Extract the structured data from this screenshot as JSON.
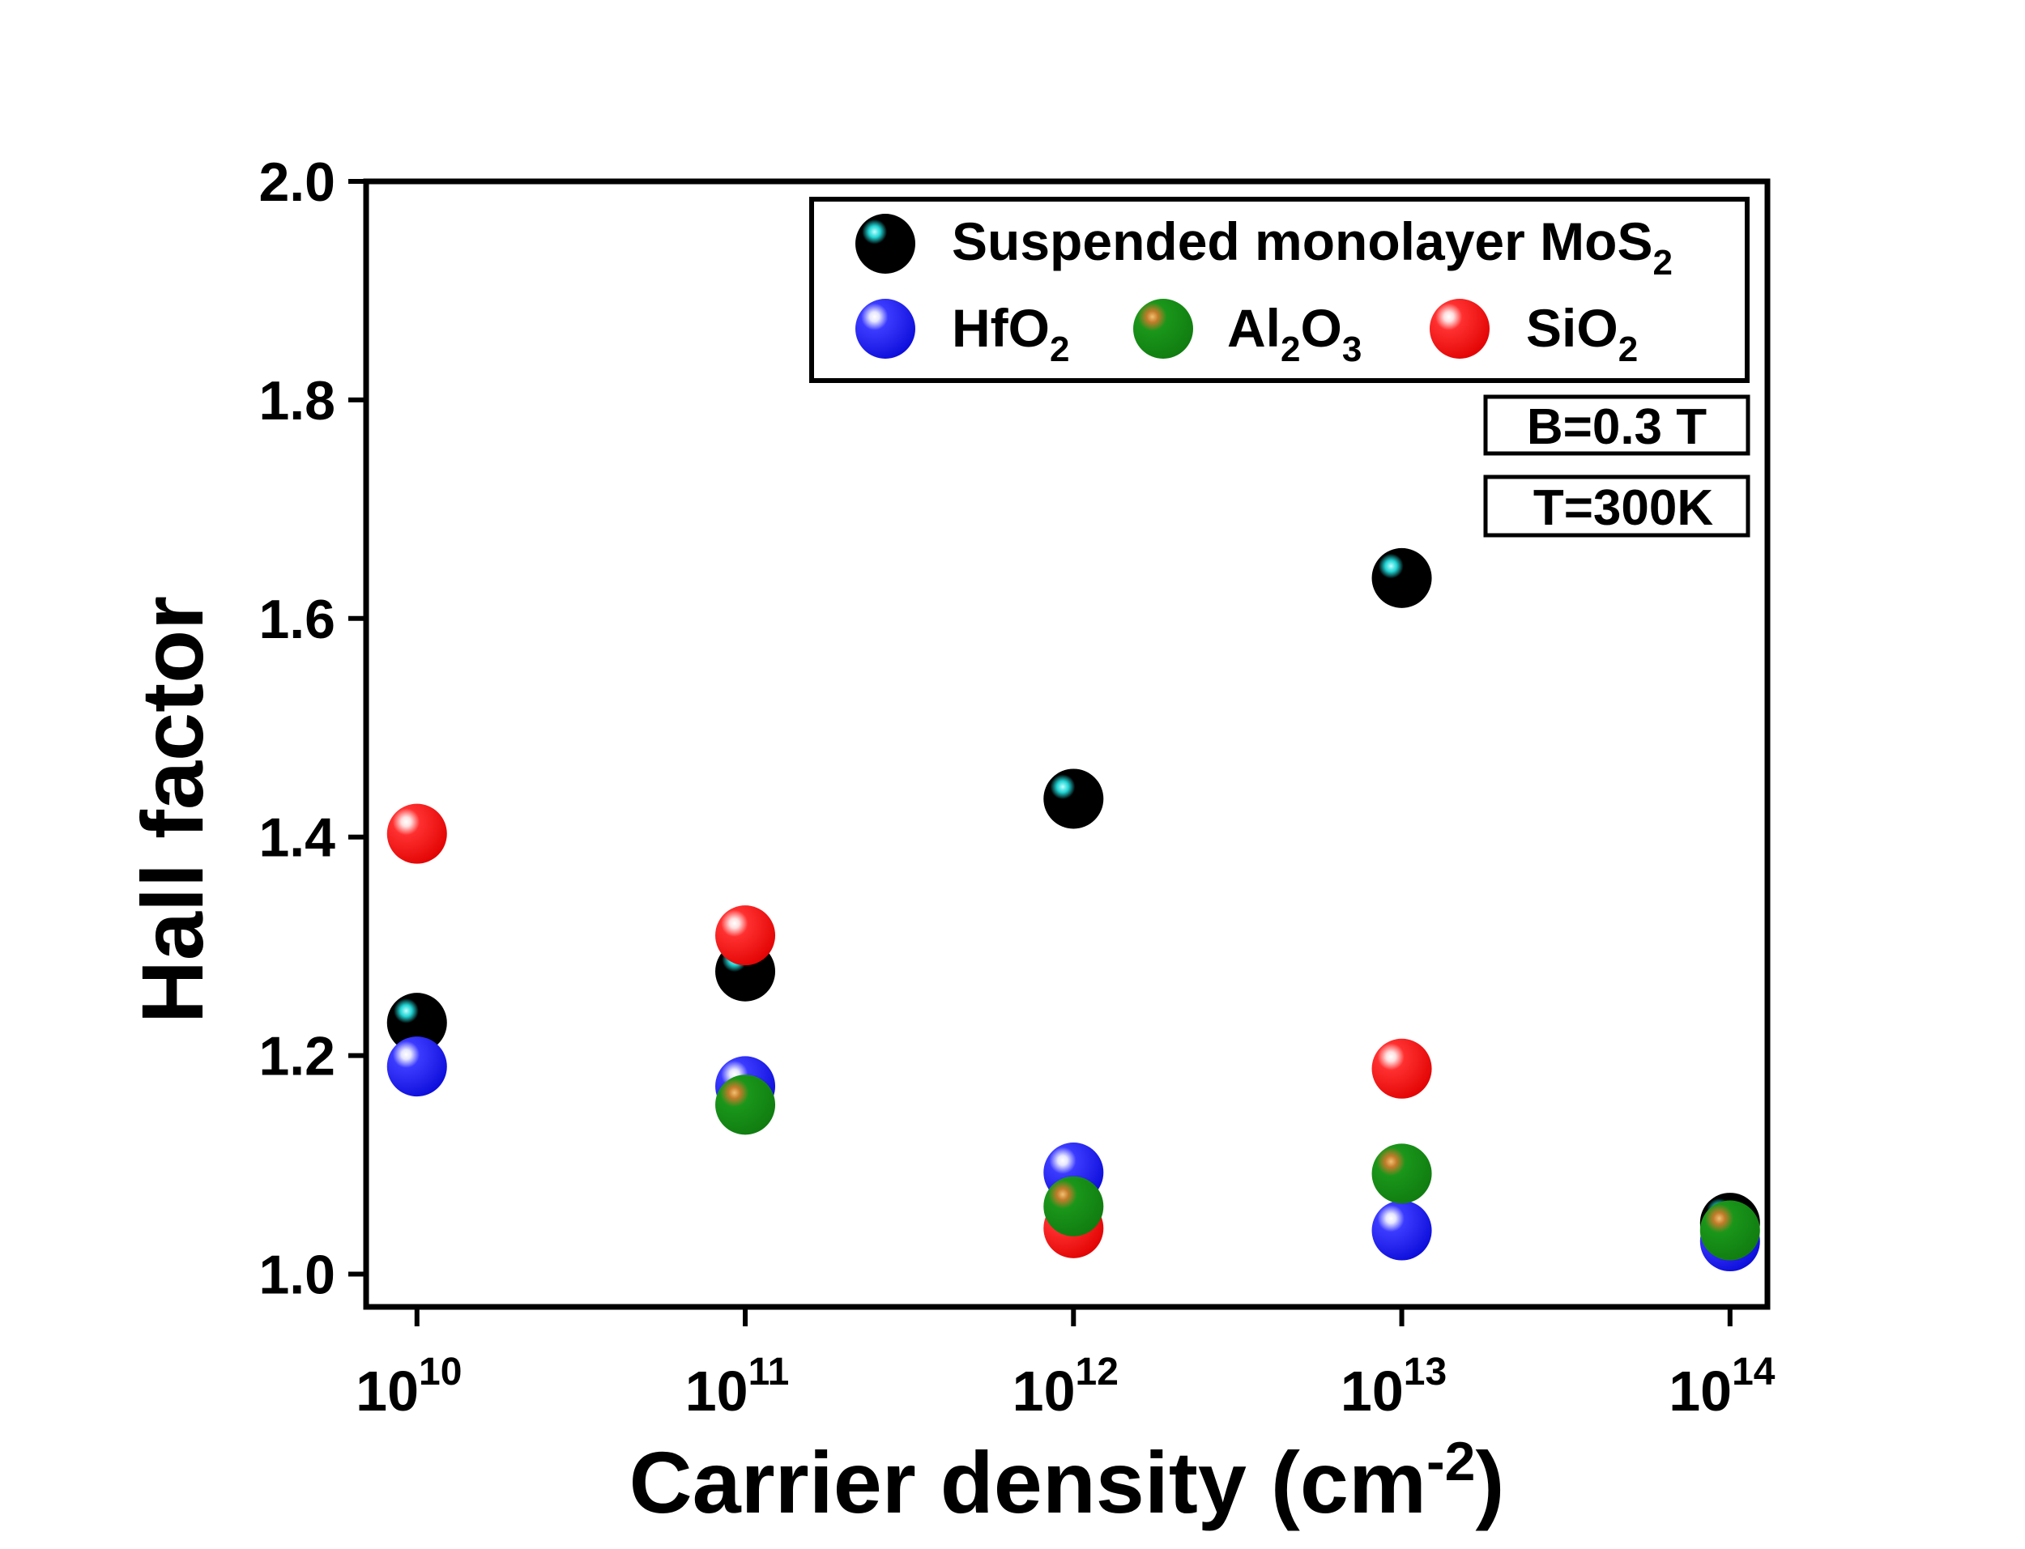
{
  "chart_data": {
    "type": "scatter",
    "xscale": "log",
    "xlabel_main": "Carrier density (cm",
    "xlabel_sup": "-2",
    "xlabel_close": ")",
    "ylabel": "Hall factor",
    "xlim": [
      7000000000.0,
      130000000000000.0
    ],
    "ylim": [
      0.97,
      2.0
    ],
    "yticks": [
      "1.0",
      "1.2",
      "1.4",
      "1.6",
      "1.8",
      "2.0"
    ],
    "ytick_values": [
      1.0,
      1.2,
      1.4,
      1.6,
      1.8,
      2.0
    ],
    "xticks": [
      {
        "base": "10",
        "exp": "10",
        "value": 10000000000.0
      },
      {
        "base": "10",
        "exp": "11",
        "value": 100000000000.0
      },
      {
        "base": "10",
        "exp": "12",
        "value": 1000000000000.0
      },
      {
        "base": "10",
        "exp": "13",
        "value": 10000000000000.0
      },
      {
        "base": "10",
        "exp": "14",
        "value": 100000000000000.0
      }
    ],
    "series": [
      {
        "key": "suspended",
        "name": "Suspended monolayer MoS",
        "sub": "2",
        "color": "#000000",
        "highlight": "#21d4d4",
        "x": [
          10000000000.0,
          100000000000.0,
          1000000000000.0,
          10000000000000.0,
          100000000000000.0
        ],
        "y": [
          1.23,
          1.277,
          1.435,
          1.637,
          1.047
        ]
      },
      {
        "key": "hfo2",
        "name": "HfO",
        "sub": "2",
        "color": "#1010ee",
        "highlight": "#ffffff",
        "x": [
          10000000000.0,
          100000000000.0,
          1000000000000.0,
          10000000000000.0,
          100000000000000.0
        ],
        "y": [
          1.19,
          1.172,
          1.093,
          1.04,
          1.03
        ]
      },
      {
        "key": "al2o3",
        "name": "Al",
        "sub": "2",
        "name2": "O",
        "sub2": "3",
        "color": "#138c13",
        "highlight": "#d98a2a",
        "x": [
          100000000000.0,
          1000000000000.0,
          10000000000000.0,
          100000000000000.0
        ],
        "y": [
          1.155,
          1.062,
          1.092,
          1.04
        ]
      },
      {
        "key": "sio2",
        "name": "SiO",
        "sub": "2",
        "color": "#ee1010",
        "highlight": "#ffffff",
        "x": [
          10000000000.0,
          100000000000.0,
          1000000000000.0,
          10000000000000.0
        ],
        "y": [
          1.403,
          1.31,
          1.042,
          1.188
        ]
      }
    ],
    "annotations": [
      {
        "text": "B=0.3 T",
        "color": "#7a0a0a"
      },
      {
        "text": "T=300K",
        "color": "#7a0a0a"
      }
    ]
  }
}
